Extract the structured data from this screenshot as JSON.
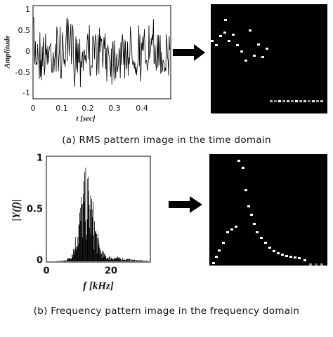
{
  "figure_a": {
    "ylabel": "Amplitude",
    "xlabel": "t [sec]",
    "xticks": [
      "0",
      "0.1",
      "0.2",
      "0.3",
      "0.4"
    ],
    "yticks": [
      "1",
      "0.5",
      "0",
      "-0.5",
      "-1"
    ],
    "caption": "(a) RMS pattern image in the time domain"
  },
  "figure_b": {
    "ylabel": "|Y(f)|",
    "xlabel": "f [kHz]",
    "xticks": [
      "0",
      "20"
    ],
    "yticks": [
      "1",
      "0.5",
      "0"
    ],
    "caption": "(b) Frequency pattern image in the frequency domain"
  }
}
